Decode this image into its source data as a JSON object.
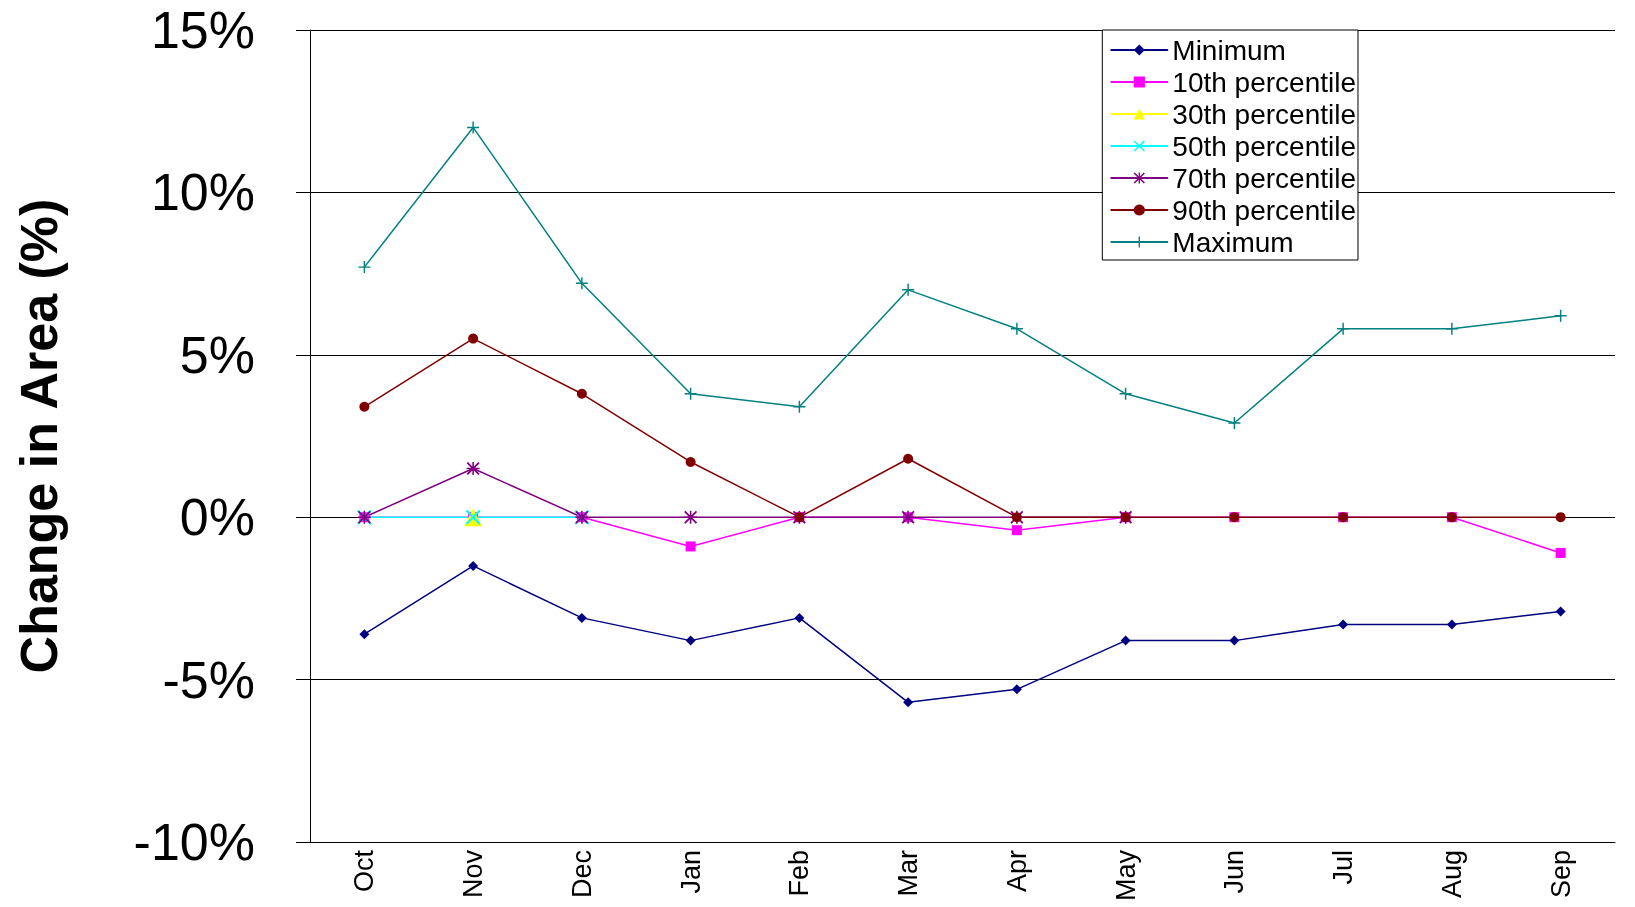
{
  "chart_data": {
    "type": "line",
    "ylabel": "Change in Area (%)",
    "categories": [
      "Oct",
      "Nov",
      "Dec",
      "Jan",
      "Feb",
      "Mar",
      "Apr",
      "May",
      "Jun",
      "Jul",
      "Aug",
      "Sep"
    ],
    "series": [
      {
        "name": "Minimum",
        "color": "#000080",
        "marker": "diamond",
        "values": [
          -3.6,
          -1.5,
          -3.1,
          -3.8,
          -3.1,
          -5.7,
          -5.3,
          -3.8,
          -3.8,
          -3.3,
          -3.3,
          -2.9
        ]
      },
      {
        "name": "10th percentile",
        "color": "#ff00ff",
        "marker": "square",
        "values": [
          0,
          0,
          0,
          -0.9,
          0,
          0,
          -0.4,
          0,
          0,
          0,
          0,
          -1.1
        ]
      },
      {
        "name": "30th percentile",
        "color": "#ffff00",
        "marker": "triangle",
        "values": [
          null,
          0,
          null,
          null,
          null,
          null,
          null,
          null,
          null,
          null,
          null,
          null
        ]
      },
      {
        "name": "50th percentile",
        "color": "#00ffff",
        "marker": "cross",
        "values": [
          0,
          0,
          0,
          null,
          null,
          null,
          null,
          null,
          null,
          null,
          null,
          null
        ]
      },
      {
        "name": "70th percentile",
        "color": "#800080",
        "marker": "star",
        "values": [
          0,
          1.5,
          0,
          0,
          0,
          0,
          0,
          0,
          null,
          null,
          null,
          null
        ]
      },
      {
        "name": "90th percentile",
        "color": "#800000",
        "marker": "circle",
        "values": [
          3.4,
          5.5,
          3.8,
          1.7,
          0,
          1.8,
          0,
          0,
          0,
          0,
          0,
          0
        ]
      },
      {
        "name": "Maximum",
        "color": "#008080",
        "marker": "plus",
        "values": [
          7.7,
          12.0,
          7.2,
          3.8,
          3.4,
          7.0,
          5.8,
          3.8,
          2.9,
          5.8,
          5.8,
          6.2
        ]
      }
    ],
    "ylim": [
      -10,
      15
    ],
    "yticks": [
      {
        "value": -10,
        "label": "-10%"
      },
      {
        "value": -5,
        "label": "-5%"
      },
      {
        "value": 0,
        "label": "0%"
      },
      {
        "value": 5,
        "label": "5%"
      },
      {
        "value": 10,
        "label": "10%"
      },
      {
        "value": 15,
        "label": "15%"
      }
    ],
    "grid": "y",
    "legend": "top right",
    "line_style": "solid"
  }
}
